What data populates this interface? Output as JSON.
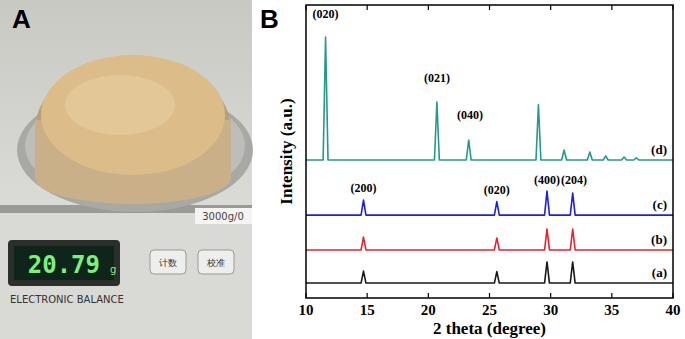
{
  "panel_labels": [
    "A",
    "B"
  ],
  "photo": {
    "display": "20.79",
    "unit": "g",
    "brand": "ELECTRONIC BALANCE",
    "capacity": "3000g/0",
    "buttons": [
      "计数",
      "校准"
    ]
  },
  "chart_data": {
    "type": "line",
    "xlabel": "2 theta (degree)",
    "ylabel": "Intensity (a.u.)",
    "xlim": [
      10,
      40
    ],
    "xticks": [
      10,
      15,
      20,
      25,
      30,
      35,
      40
    ],
    "ylim": [
      0,
      100
    ],
    "tick_labels": "x",
    "series": [
      {
        "name": "(a)",
        "color": "#1a1a1a",
        "x": [
          10,
          14.5,
          14.7,
          14.9,
          25.4,
          25.6,
          25.8,
          29.5,
          29.7,
          29.9,
          31.6,
          31.8,
          32.0,
          40
        ],
        "values": [
          5.1,
          5.1,
          9.2,
          5.1,
          5.1,
          9.0,
          5.1,
          5.1,
          12.3,
          5.1,
          5.1,
          12.3,
          5.1,
          5.1
        ]
      },
      {
        "name": "(b)",
        "color": "#e8212b",
        "x": [
          10,
          14.5,
          14.7,
          14.9,
          25.4,
          25.6,
          25.8,
          29.5,
          29.7,
          29.9,
          31.6,
          31.8,
          32.0,
          40
        ],
        "values": [
          16.4,
          16.4,
          20.8,
          16.4,
          16.4,
          20.5,
          16.4,
          16.4,
          23.5,
          16.4,
          16.4,
          23.5,
          16.4,
          16.4
        ]
      },
      {
        "name": "(c)",
        "color": "#1f1fe0",
        "x": [
          10,
          14.5,
          14.7,
          14.9,
          25.4,
          25.6,
          25.8,
          29.5,
          29.7,
          29.9,
          31.6,
          31.8,
          32.0,
          40
        ],
        "values": [
          28.3,
          28.3,
          33.4,
          28.3,
          28.3,
          32.9,
          28.3,
          28.3,
          36.5,
          28.3,
          28.3,
          35.8,
          28.3,
          28.3
        ]
      },
      {
        "name": "(d)",
        "color": "#26998a",
        "x": [
          10,
          11.4,
          11.6,
          11.8,
          20.5,
          20.7,
          20.9,
          23.1,
          23.3,
          23.5,
          28.8,
          29.0,
          29.2,
          30.9,
          31.1,
          31.3,
          33.0,
          33.2,
          33.4,
          34.3,
          34.5,
          34.7,
          35.8,
          36.0,
          36.2,
          36.8,
          37.0,
          37.2,
          40
        ],
        "values": [
          47.1,
          47.1,
          89.1,
          47.1,
          47.1,
          66.9,
          47.1,
          47.1,
          53.9,
          47.1,
          47.1,
          65.9,
          47.1,
          47.1,
          50.5,
          47.1,
          47.1,
          49.8,
          47.1,
          47.1,
          48.5,
          47.1,
          47.1,
          48.1,
          47.1,
          47.1,
          47.8,
          47.1,
          47.1
        ]
      }
    ],
    "annotations": [
      {
        "text": "(200)",
        "x": 14.7,
        "y": 37.5
      },
      {
        "text": "(020)",
        "x": 25.6,
        "y": 36.9
      },
      {
        "text": "(400)",
        "x": 29.7,
        "y": 40.3
      },
      {
        "text": "(204)",
        "x": 31.9,
        "y": 40.3
      },
      {
        "text": "(020)",
        "x": 11.6,
        "y": 96.9
      },
      {
        "text": "(021)",
        "x": 20.7,
        "y": 75.1
      },
      {
        "text": "(040)",
        "x": 23.4,
        "y": 62.5
      }
    ]
  }
}
